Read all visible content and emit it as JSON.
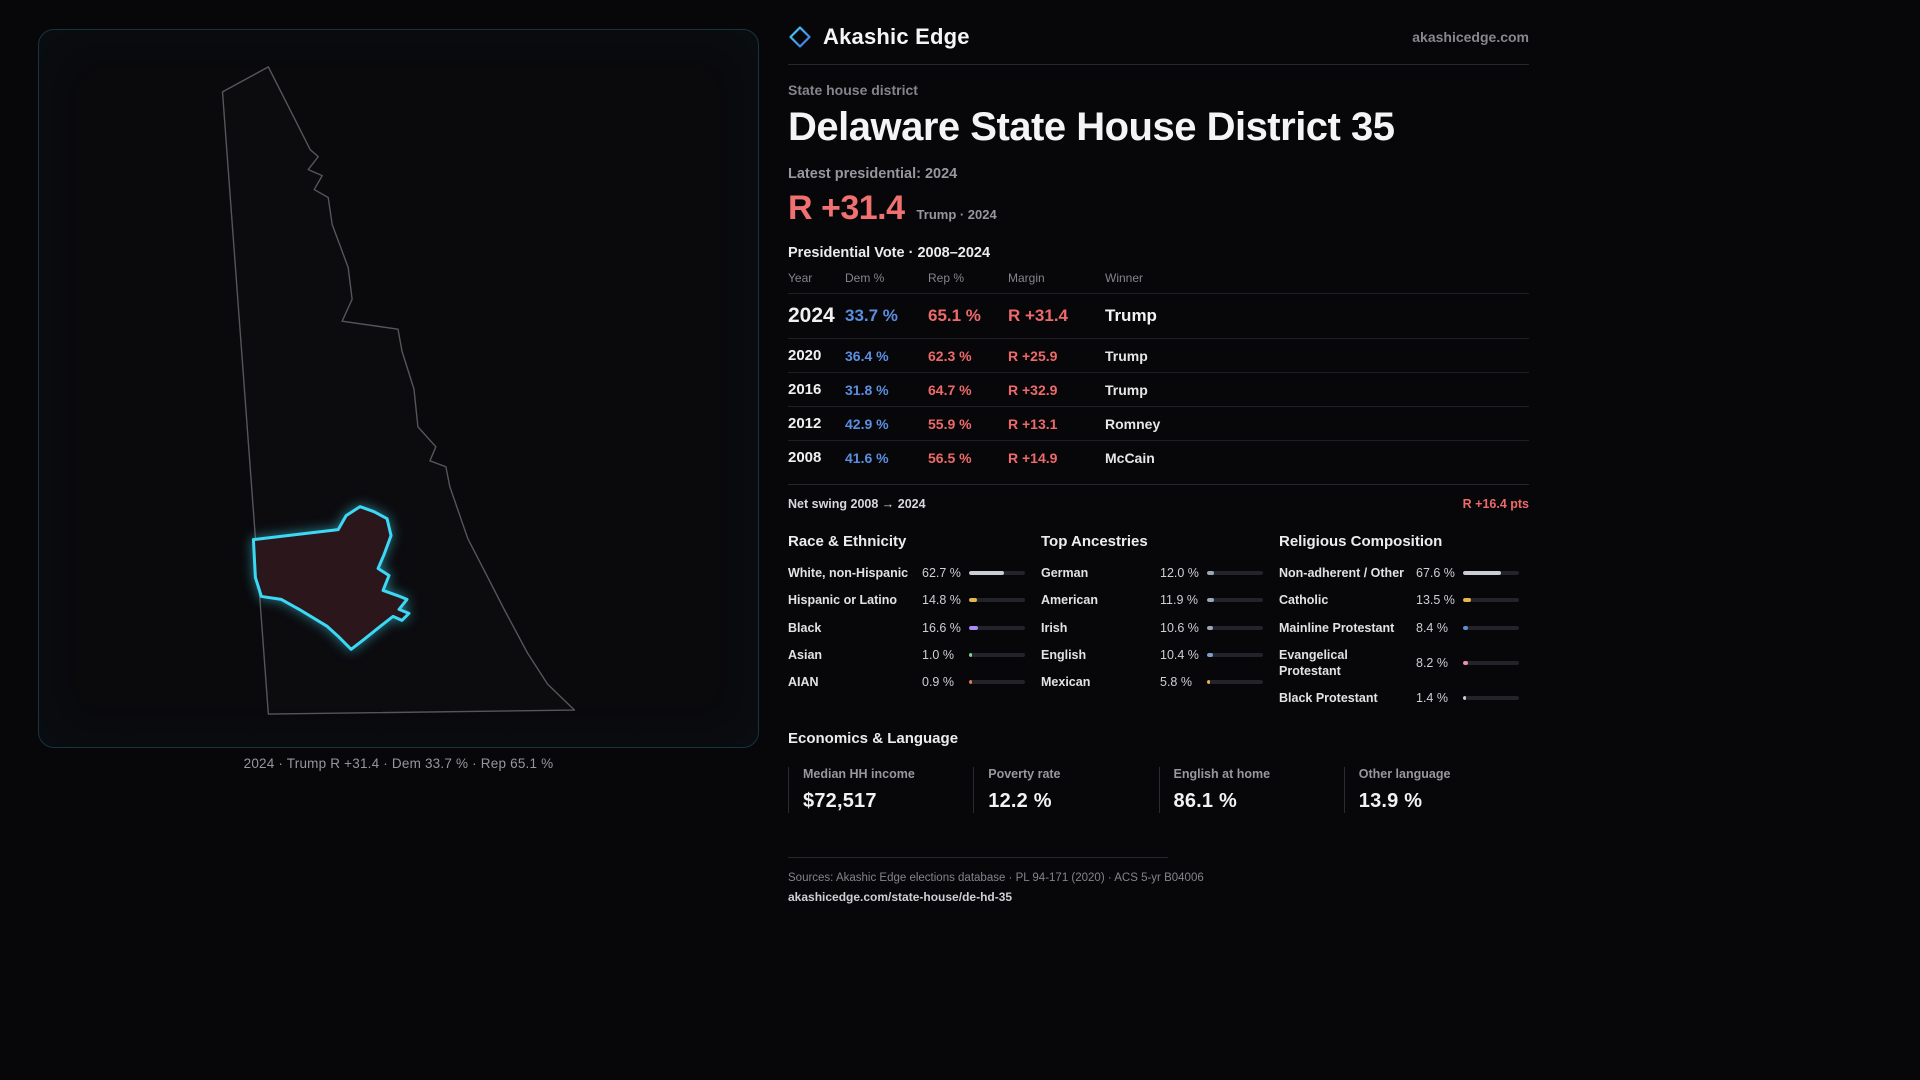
{
  "brand": {
    "name": "Akashic Edge",
    "domain": "akashicedge.com"
  },
  "map_panel": {
    "caption": "2024 · Trump R +31.4 · Dem 33.7 % · Rep 65.1 %"
  },
  "page": {
    "kicker": "State house district",
    "title": "Delaware State House District 35",
    "latest_label": "Latest presidential: 2024",
    "headline_margin": "R +31.4",
    "headline_context": "Trump · 2024"
  },
  "vote_table": {
    "title": "Presidential Vote · 2008–2024",
    "columns": [
      "Year",
      "Dem %",
      "Rep %",
      "Margin",
      "Winner"
    ],
    "rows": [
      {
        "year": "2024",
        "dem": "33.7 %",
        "rep": "65.1 %",
        "margin": "R +31.4",
        "winner": "Trump"
      },
      {
        "year": "2020",
        "dem": "36.4 %",
        "rep": "62.3 %",
        "margin": "R +25.9",
        "winner": "Trump"
      },
      {
        "year": "2016",
        "dem": "31.8 %",
        "rep": "64.7 %",
        "margin": "R +32.9",
        "winner": "Trump"
      },
      {
        "year": "2012",
        "dem": "42.9 %",
        "rep": "55.9 %",
        "margin": "R +13.1",
        "winner": "Romney"
      },
      {
        "year": "2008",
        "dem": "41.6 %",
        "rep": "56.5 %",
        "margin": "R +14.9",
        "winner": "McCain"
      }
    ]
  },
  "net_swing": {
    "label": "Net swing 2008 → 2024",
    "value": "R +16.4 pts"
  },
  "demographics": {
    "groups": [
      {
        "title": "Race & Ethnicity",
        "items": [
          {
            "label": "White, non-Hispanic",
            "value": "62.7 %",
            "pct": 62.7,
            "color": "#c9cdd4"
          },
          {
            "label": "Hispanic or Latino",
            "value": "14.8 %",
            "pct": 14.8,
            "color": "#e3b74e"
          },
          {
            "label": "Black",
            "value": "16.6 %",
            "pct": 16.6,
            "color": "#a78bfa"
          },
          {
            "label": "Asian",
            "value": "1.0 %",
            "pct": 1.0,
            "color": "#7bd88f"
          },
          {
            "label": "AIAN",
            "value": "0.9 %",
            "pct": 0.9,
            "color": "#e07a5f"
          }
        ]
      },
      {
        "title": "Top Ancestries",
        "items": [
          {
            "label": "German",
            "value": "12.0 %",
            "pct": 12.0,
            "color": "#9aa7b8"
          },
          {
            "label": "American",
            "value": "11.9 %",
            "pct": 11.9,
            "color": "#9aa7b8"
          },
          {
            "label": "Irish",
            "value": "10.6 %",
            "pct": 10.6,
            "color": "#9aa7b8"
          },
          {
            "label": "English",
            "value": "10.4 %",
            "pct": 10.4,
            "color": "#7f9cc9"
          },
          {
            "label": "Mexican",
            "value": "5.8 %",
            "pct": 5.8,
            "color": "#e3b74e"
          }
        ]
      },
      {
        "title": "Religious Composition",
        "items": [
          {
            "label": "Non-adherent / Other",
            "value": "67.6 %",
            "pct": 67.6,
            "color": "#c9cdd4"
          },
          {
            "label": "Catholic",
            "value": "13.5 %",
            "pct": 13.5,
            "color": "#e3b74e"
          },
          {
            "label": "Mainline Protestant",
            "value": "8.4 %",
            "pct": 8.4,
            "color": "#5b8dd9"
          },
          {
            "label": "Evangelical Protestant",
            "value": "8.2 %",
            "pct": 8.2,
            "color": "#ef8fa3"
          },
          {
            "label": "Black Protestant",
            "value": "1.4 %",
            "pct": 1.4,
            "color": "#c9cdd4"
          }
        ]
      }
    ]
  },
  "economics": {
    "title": "Economics & Language",
    "stats": [
      {
        "label": "Median HH income",
        "value": "$72,517"
      },
      {
        "label": "Poverty rate",
        "value": "12.2 %"
      },
      {
        "label": "English at home",
        "value": "86.1 %"
      },
      {
        "label": "Other language",
        "value": "13.9 %"
      }
    ]
  },
  "footer": {
    "sources": "Sources: Akashic Edge elections database · PL 94-171 (2020) · ACS 5-yr B04006",
    "url": "akashicedge.com/state-house/de-hd-35"
  },
  "colors": {
    "accent": "#3dd9f4",
    "rep": "#ee6a6a",
    "dem": "#5c8ee0"
  }
}
